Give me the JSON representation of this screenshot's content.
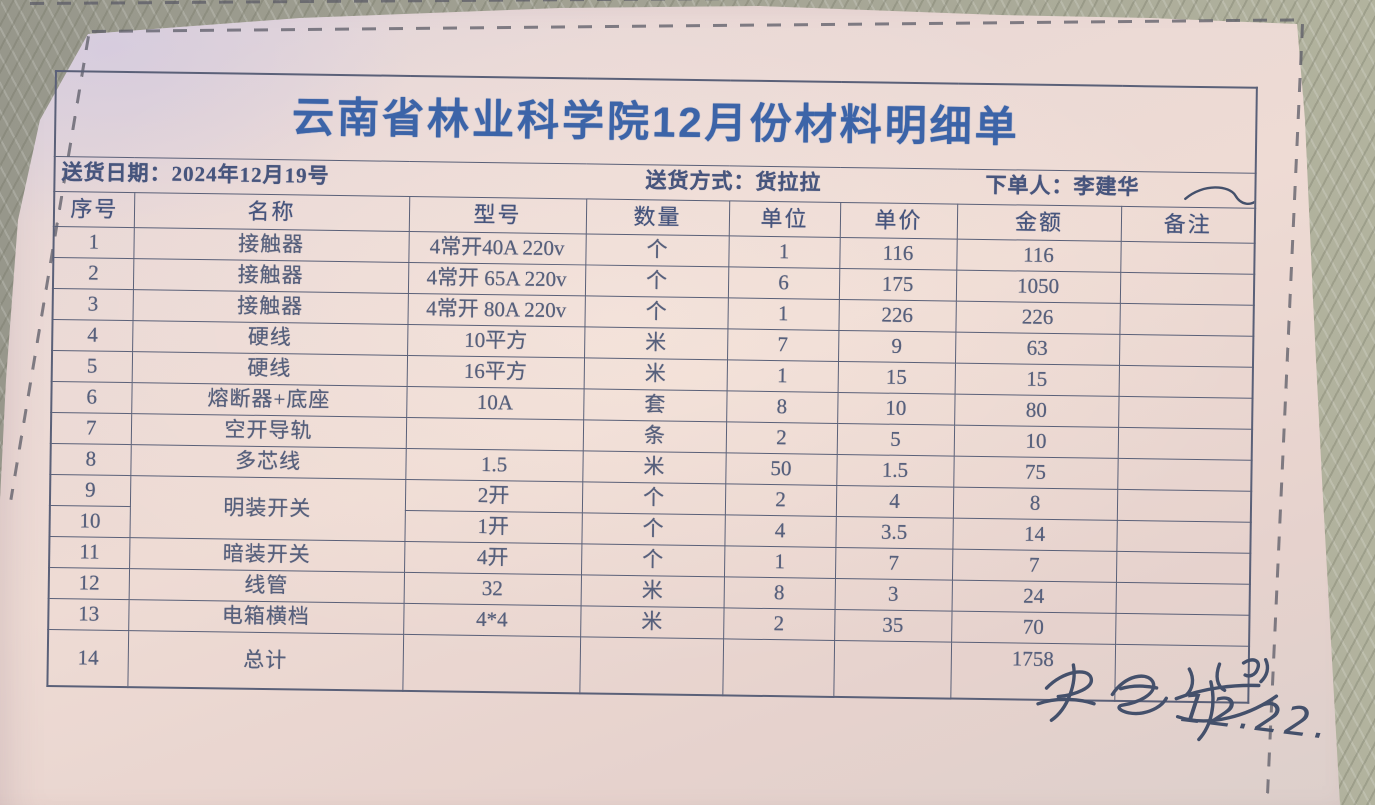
{
  "colors": {
    "paper_pink": "#ecd9d3",
    "desk_surface": "#a3a394",
    "table_line": "#5a6078",
    "title_blue": "#3c64a8",
    "ink": "#57607c",
    "ink_header": "#47557d",
    "signature_ink": "#44506b"
  },
  "document": {
    "title": "云南省林业科学院12月份材料明细单",
    "info": {
      "delivery_date_label": "送货日期：",
      "delivery_date": "2024年12月19号",
      "delivery_method_label": "送货方式：",
      "delivery_method": "货拉拉",
      "orderer_label": "下单人：",
      "orderer": "李建华"
    },
    "table": {
      "headers": [
        "序号",
        "名称",
        "型号",
        "数量",
        "单位",
        "单价",
        "金额",
        "备注"
      ],
      "rows": [
        {
          "no": "1",
          "name": "接触器",
          "model": "4常开40A 220v",
          "measure": "个",
          "count": "1",
          "price": "116",
          "amount": "116",
          "remark": ""
        },
        {
          "no": "2",
          "name": "接触器",
          "model": "4常开 65A 220v",
          "measure": "个",
          "count": "6",
          "price": "175",
          "amount": "1050",
          "remark": ""
        },
        {
          "no": "3",
          "name": "接触器",
          "model": "4常开 80A 220v",
          "measure": "个",
          "count": "1",
          "price": "226",
          "amount": "226",
          "remark": ""
        },
        {
          "no": "4",
          "name": "硬线",
          "model": "10平方",
          "measure": "米",
          "count": "7",
          "price": "9",
          "amount": "63",
          "remark": ""
        },
        {
          "no": "5",
          "name": "硬线",
          "model": "16平方",
          "measure": "米",
          "count": "1",
          "price": "15",
          "amount": "15",
          "remark": ""
        },
        {
          "no": "6",
          "name": "熔断器+底座",
          "model": "10A",
          "measure": "套",
          "count": "8",
          "price": "10",
          "amount": "80",
          "remark": ""
        },
        {
          "no": "7",
          "name": "空开导轨",
          "model": "",
          "measure": "条",
          "count": "2",
          "price": "5",
          "amount": "10",
          "remark": ""
        },
        {
          "no": "8",
          "name": "多芯线",
          "model": "1.5",
          "measure": "米",
          "count": "50",
          "price": "1.5",
          "amount": "75",
          "remark": ""
        },
        {
          "no": "9",
          "name": "明装开关",
          "model": "2开",
          "measure": "个",
          "count": "2",
          "price": "4",
          "amount": "8",
          "remark": ""
        },
        {
          "no": "10",
          "name": null,
          "model": "1开",
          "measure": "个",
          "count": "4",
          "price": "3.5",
          "amount": "14",
          "remark": ""
        },
        {
          "no": "11",
          "name": "暗装开关",
          "model": "4开",
          "measure": "个",
          "count": "1",
          "price": "7",
          "amount": "7",
          "remark": ""
        },
        {
          "no": "12",
          "name": "线管",
          "model": "32",
          "measure": "米",
          "count": "8",
          "price": "3",
          "amount": "24",
          "remark": ""
        },
        {
          "no": "13",
          "name": "电箱横档",
          "model": "4*4",
          "measure": "米",
          "count": "2",
          "price": "35",
          "amount": "70",
          "remark": ""
        }
      ],
      "total_row": {
        "no": "14",
        "name": "总计",
        "model": "",
        "measure": "",
        "count": "",
        "price": "",
        "amount": "1758",
        "remark": ""
      }
    },
    "signature": {
      "name": "李建华",
      "date": "12.22."
    }
  }
}
